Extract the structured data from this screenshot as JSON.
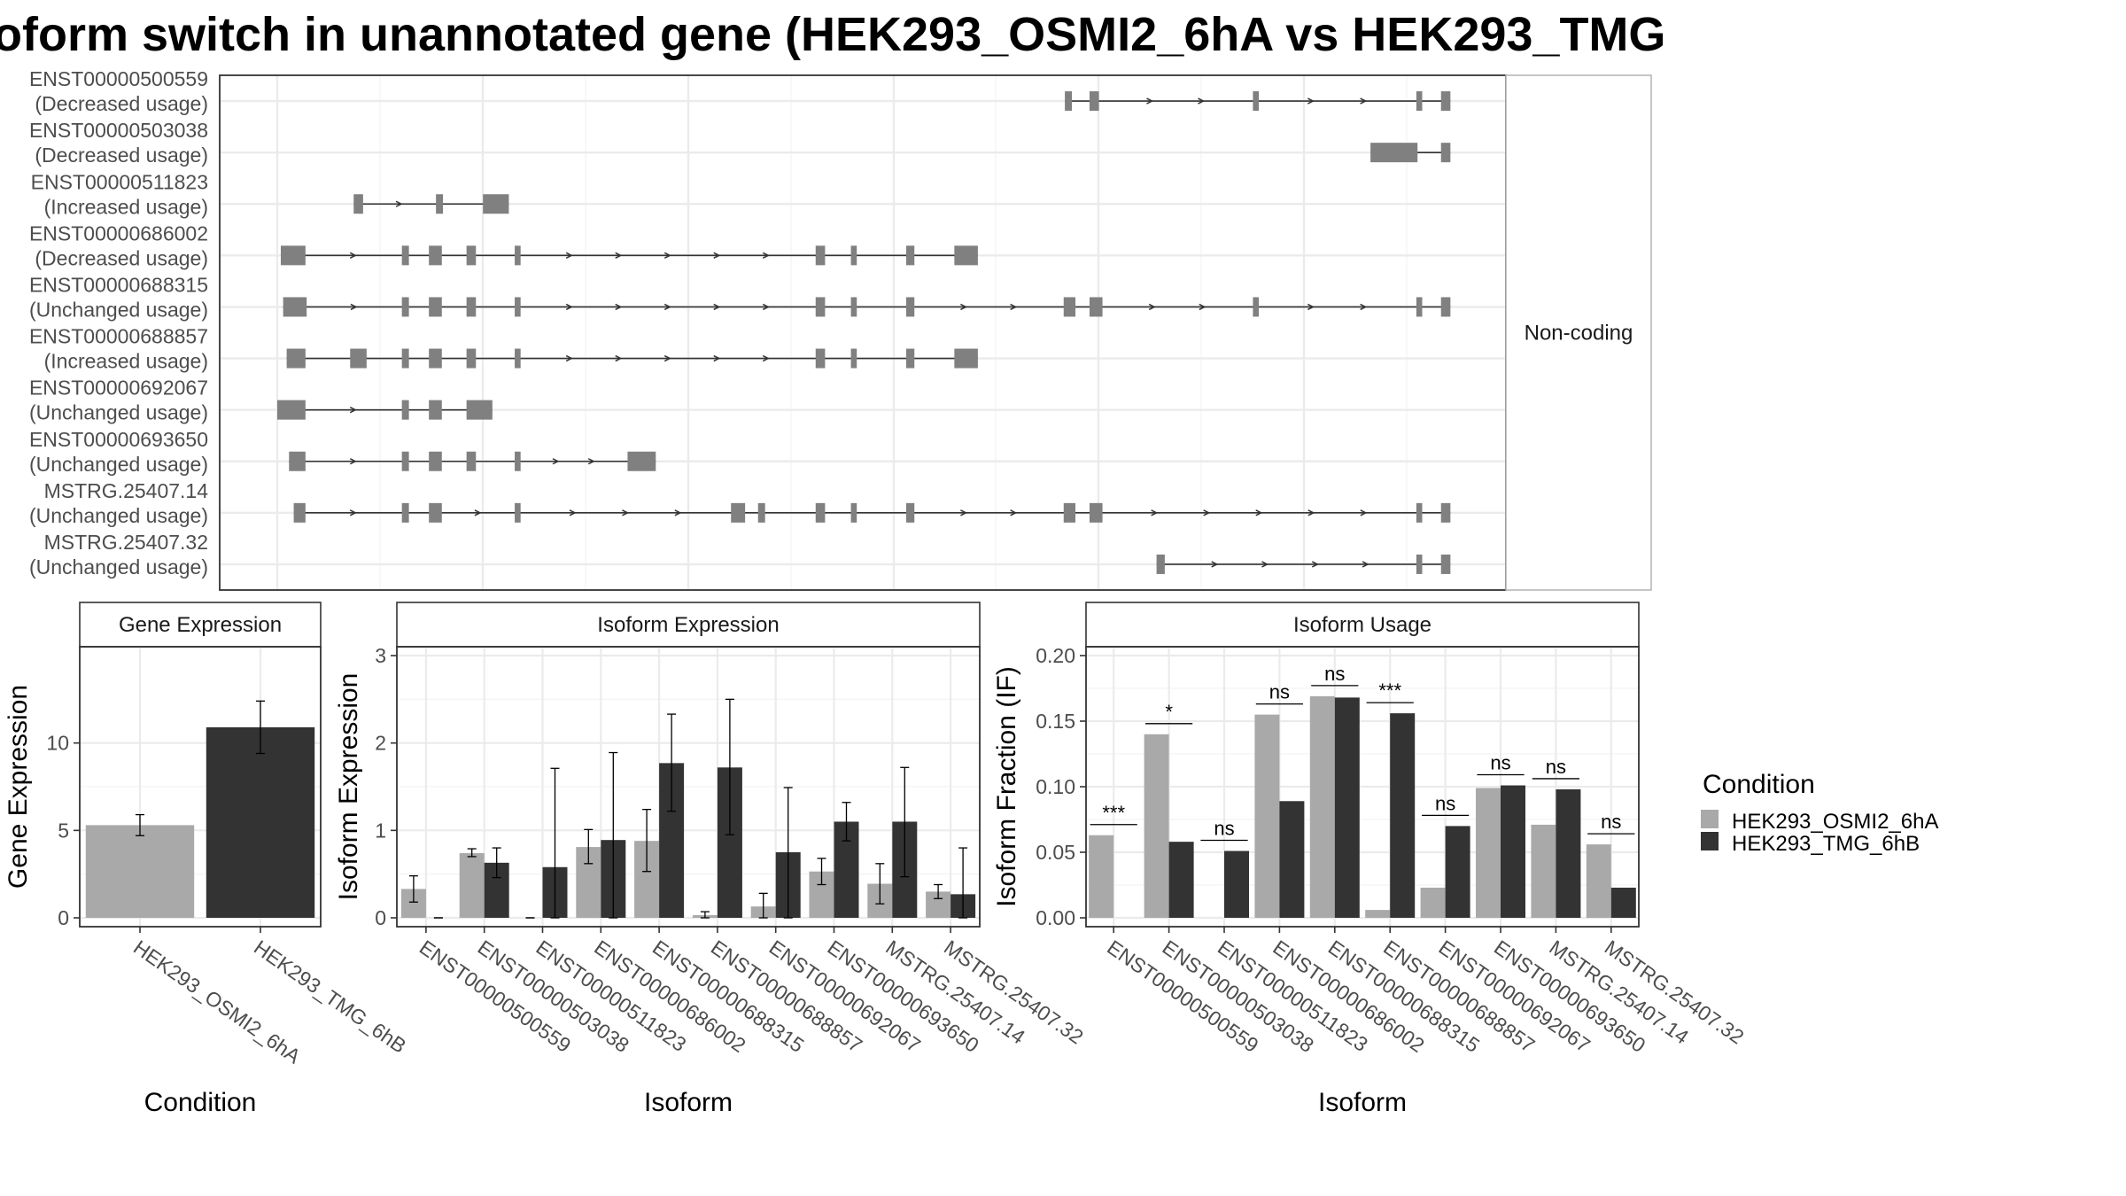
{
  "title": "oform switch in unannotated gene (HEK293_OSMI2_6hA vs HEK293_TMG",
  "legend": {
    "title": "Condition",
    "items": [
      "HEK293_OSMI2_6hA",
      "HEK293_TMG_6hB"
    ],
    "colors": [
      "#a9a9a9",
      "#333333"
    ]
  },
  "colors": {
    "osmi": "#a9a9a9",
    "tmg": "#333333",
    "exon": "#808080",
    "intron": "#333333",
    "grid": "#ebebeb",
    "panel_border": "#333333",
    "strip_bg": "#ffffff"
  },
  "chart_data": [
    {
      "type": "gene-structure",
      "facet_label": "Non-coding",
      "x_range": [
        0,
        100
      ],
      "transcripts": [
        {
          "name": "ENST00000500559",
          "status": "(Decreased usage)",
          "exons": [
            [
              67.0,
              67.6
            ],
            [
              69.1,
              69.9
            ],
            [
              83.0,
              83.5
            ],
            [
              96.9,
              97.4
            ],
            [
              99.0,
              99.8
            ]
          ]
        },
        {
          "name": "ENST00000503038",
          "status": "(Decreased usage)",
          "exons": [
            [
              93.0,
              97.0
            ],
            [
              99.0,
              99.8
            ]
          ]
        },
        {
          "name": "ENST00000511823",
          "status": "(Increased usage)",
          "exons": [
            [
              6.5,
              7.3
            ],
            [
              13.5,
              14.1
            ],
            [
              17.5,
              19.7
            ]
          ]
        },
        {
          "name": "ENST00000686002",
          "status": "(Decreased usage)",
          "exons": [
            [
              0.3,
              2.4
            ],
            [
              10.6,
              11.2
            ],
            [
              12.9,
              14.0
            ],
            [
              16.1,
              16.9
            ],
            [
              20.2,
              20.7
            ],
            [
              45.8,
              46.6
            ],
            [
              48.8,
              49.3
            ],
            [
              53.5,
              54.2
            ],
            [
              57.6,
              59.6
            ]
          ]
        },
        {
          "name": "ENST00000688315",
          "status": "(Unchanged usage)",
          "exons": [
            [
              0.5,
              2.5
            ],
            [
              10.6,
              11.2
            ],
            [
              12.9,
              14.0
            ],
            [
              16.1,
              16.9
            ],
            [
              20.2,
              20.7
            ],
            [
              45.8,
              46.6
            ],
            [
              48.8,
              49.3
            ],
            [
              53.5,
              54.2
            ],
            [
              66.9,
              67.9
            ],
            [
              69.1,
              70.2
            ],
            [
              83.0,
              83.5
            ],
            [
              96.9,
              97.4
            ],
            [
              99.0,
              99.8
            ]
          ]
        },
        {
          "name": "ENST00000688857",
          "status": "(Increased usage)",
          "exons": [
            [
              0.8,
              2.4
            ],
            [
              6.2,
              7.6
            ],
            [
              10.6,
              11.2
            ],
            [
              12.9,
              14.0
            ],
            [
              16.1,
              16.9
            ],
            [
              20.2,
              20.7
            ],
            [
              45.8,
              46.6
            ],
            [
              48.8,
              49.3
            ],
            [
              53.5,
              54.2
            ],
            [
              57.6,
              59.6
            ]
          ]
        },
        {
          "name": "ENST00000692067",
          "status": "(Unchanged usage)",
          "exons": [
            [
              0.0,
              2.4
            ],
            [
              10.6,
              11.2
            ],
            [
              12.9,
              14.0
            ],
            [
              16.1,
              18.3
            ]
          ]
        },
        {
          "name": "ENST00000693650",
          "status": "(Unchanged usage)",
          "exons": [
            [
              1.0,
              2.4
            ],
            [
              10.6,
              11.2
            ],
            [
              12.9,
              14.0
            ],
            [
              16.1,
              16.9
            ],
            [
              20.2,
              20.7
            ],
            [
              29.8,
              32.2
            ]
          ]
        },
        {
          "name": "MSTRG.25407.14",
          "status": "(Unchanged usage)",
          "exons": [
            [
              1.4,
              2.4
            ],
            [
              10.6,
              11.2
            ],
            [
              12.9,
              14.0
            ],
            [
              20.2,
              20.7
            ],
            [
              38.6,
              39.8
            ],
            [
              40.9,
              41.5
            ],
            [
              45.8,
              46.6
            ],
            [
              48.8,
              49.3
            ],
            [
              53.5,
              54.2
            ],
            [
              66.9,
              67.9
            ],
            [
              69.1,
              70.2
            ],
            [
              96.9,
              97.4
            ],
            [
              99.0,
              99.8
            ]
          ]
        },
        {
          "name": "MSTRG.25407.32",
          "status": "(Unchanged usage)",
          "exons": [
            [
              74.8,
              75.5
            ],
            [
              96.9,
              97.4
            ],
            [
              99.0,
              99.8
            ]
          ]
        }
      ]
    },
    {
      "type": "bar",
      "facet_label": "Gene Expression",
      "xlabel": "Condition",
      "ylabel": "Gene Expression",
      "ylim": [
        0,
        15
      ],
      "yticks": [
        0,
        5,
        10
      ],
      "categories": [
        "HEK293_OSMI2_6hA",
        "HEK293_TMG_6hB"
      ],
      "values": [
        5.3,
        10.9
      ],
      "err_low": [
        4.7,
        9.4
      ],
      "err_high": [
        5.9,
        12.4
      ]
    },
    {
      "type": "bar",
      "facet_label": "Isoform Expression",
      "xlabel": "Isoform",
      "ylabel": "Isoform Expression",
      "ylim": [
        0,
        3
      ],
      "yticks": [
        0,
        1,
        2,
        3
      ],
      "categories": [
        "ENST00000500559",
        "ENST00000503038",
        "ENST00000511823",
        "ENST00000686002",
        "ENST00000688315",
        "ENST00000688857",
        "ENST00000692067",
        "ENST00000693650",
        "MSTRG.25407.14",
        "MSTRG.25407.32"
      ],
      "series": [
        {
          "name": "HEK293_OSMI2_6hA",
          "values": [
            0.33,
            0.74,
            0.0,
            0.81,
            0.88,
            0.03,
            0.13,
            0.53,
            0.39,
            0.3
          ],
          "err_low": [
            0.18,
            0.7,
            0.0,
            0.62,
            0.53,
            0.0,
            0.0,
            0.38,
            0.16,
            0.22
          ],
          "err_high": [
            0.48,
            0.79,
            0.0,
            1.01,
            1.24,
            0.07,
            0.28,
            0.68,
            0.62,
            0.38
          ]
        },
        {
          "name": "HEK293_TMG_6hB",
          "values": [
            0.0,
            0.63,
            0.58,
            0.89,
            1.77,
            1.72,
            0.75,
            1.1,
            1.1,
            0.27
          ],
          "err_low": [
            0.0,
            0.46,
            0.0,
            0.0,
            1.22,
            0.95,
            0.0,
            0.88,
            0.47,
            0.0
          ],
          "err_high": [
            0.0,
            0.8,
            1.71,
            1.89,
            2.33,
            2.5,
            1.49,
            1.32,
            1.72,
            0.8
          ]
        }
      ]
    },
    {
      "type": "bar",
      "facet_label": "Isoform Usage",
      "xlabel": "Isoform",
      "ylabel": "Isoform Fraction (IF)",
      "ylim": [
        0,
        0.2
      ],
      "yticks": [
        "0.00",
        "0.05",
        "0.10",
        "0.15",
        "0.20"
      ],
      "categories": [
        "ENST00000500559",
        "ENST00000503038",
        "ENST00000511823",
        "ENST00000686002",
        "ENST00000688315",
        "ENST00000688857",
        "ENST00000692067",
        "ENST00000693650",
        "MSTRG.25407.14",
        "MSTRG.25407.32"
      ],
      "series": [
        {
          "name": "HEK293_OSMI2_6hA",
          "values": [
            0.063,
            0.14,
            0.0,
            0.155,
            0.169,
            0.006,
            0.023,
            0.099,
            0.071,
            0.056
          ]
        },
        {
          "name": "HEK293_TMG_6hB",
          "values": [
            0.0,
            0.058,
            0.051,
            0.089,
            0.168,
            0.156,
            0.07,
            0.101,
            0.098,
            0.023
          ]
        }
      ],
      "significance": [
        "***",
        "*",
        "ns",
        "ns",
        "ns",
        "***",
        "ns",
        "ns",
        "ns",
        "ns"
      ]
    }
  ]
}
